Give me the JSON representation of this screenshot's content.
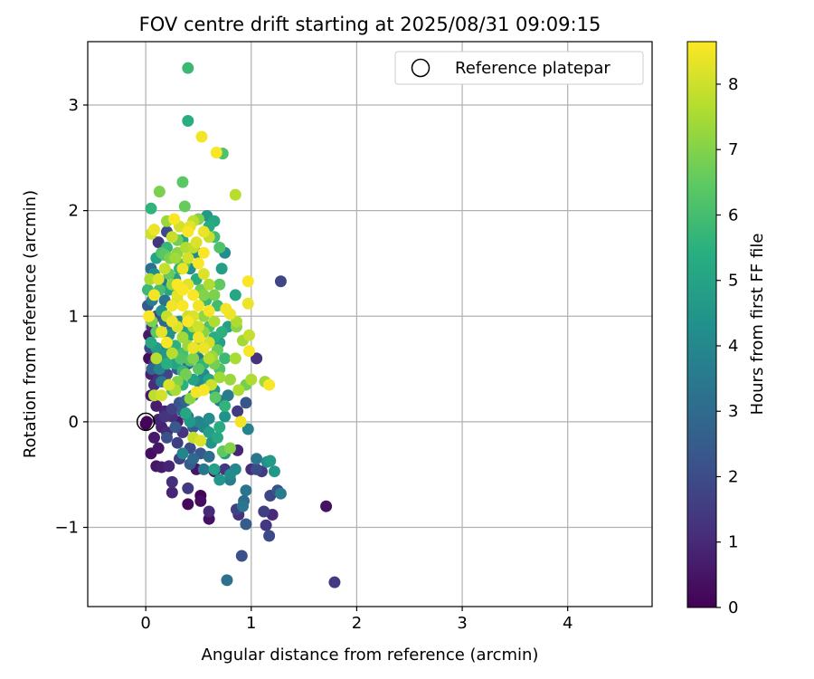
{
  "chart_data": {
    "type": "scatter",
    "title": "FOV centre drift starting at 2025/08/31 09:09:15",
    "xlabel": "Angular distance from reference (arcmin)",
    "ylabel": "Rotation from reference (arcmin)",
    "xlim": [
      -0.55,
      4.8
    ],
    "ylim": [
      -1.75,
      3.6
    ],
    "xticks": [
      0,
      1,
      2,
      3,
      4
    ],
    "xtick_labels": [
      "0",
      "1",
      "2",
      "3",
      "4"
    ],
    "yticks": [
      -1,
      0,
      1,
      2,
      3
    ],
    "ytick_labels": [
      "−1",
      "0",
      "1",
      "2",
      "3"
    ],
    "grid": true,
    "legend": {
      "position": "top-right",
      "entries": [
        "Reference platepar"
      ]
    },
    "reference_point": {
      "x": 0,
      "y": 0,
      "marker": "hollow-circle"
    },
    "colorbar": {
      "label": "Hours from first FF file",
      "colormap": "viridis",
      "range": [
        0,
        8.65
      ],
      "ticks": [
        0,
        1,
        2,
        3,
        4,
        5,
        6,
        7,
        8
      ],
      "tick_labels": [
        "0",
        "1",
        "2",
        "3",
        "4",
        "5",
        "6",
        "7",
        "8"
      ]
    },
    "points": [
      [
        0.01,
        0.0,
        0.1
      ],
      [
        0.0,
        -0.02,
        0.0
      ],
      [
        0.05,
        -0.3,
        0.3
      ],
      [
        0.08,
        -0.15,
        0.6
      ],
      [
        0.12,
        -0.25,
        0.5
      ],
      [
        0.15,
        -0.05,
        0.8
      ],
      [
        0.2,
        -0.1,
        1.0
      ],
      [
        0.1,
        -0.42,
        0.5
      ],
      [
        0.15,
        -0.43,
        0.7
      ],
      [
        0.22,
        -0.42,
        0.9
      ],
      [
        0.25,
        -0.57,
        1.1
      ],
      [
        0.25,
        -0.67,
        0.9
      ],
      [
        0.4,
        -0.63,
        1.5
      ],
      [
        0.4,
        -0.78,
        0.2
      ],
      [
        0.52,
        -0.7,
        0.1
      ],
      [
        0.52,
        -0.75,
        0.3
      ],
      [
        0.6,
        -0.92,
        0.4
      ],
      [
        0.6,
        -0.85,
        1.0
      ],
      [
        0.65,
        -0.47,
        0.6
      ],
      [
        0.75,
        -0.45,
        1.4
      ],
      [
        0.86,
        -0.83,
        1.7
      ],
      [
        0.88,
        -0.88,
        1.2
      ],
      [
        0.92,
        -0.8,
        3.4
      ],
      [
        0.93,
        -0.75,
        3.0
      ],
      [
        0.95,
        -0.65,
        3.3
      ],
      [
        0.95,
        -0.97,
        2.5
      ],
      [
        0.91,
        -1.27,
        2.1
      ],
      [
        0.77,
        -1.5,
        3.2
      ],
      [
        1.0,
        -0.45,
        1.1
      ],
      [
        1.05,
        -0.45,
        2.0
      ],
      [
        1.1,
        -0.47,
        1.5
      ],
      [
        1.12,
        -0.85,
        1.6
      ],
      [
        1.14,
        -0.98,
        1.4
      ],
      [
        1.17,
        -1.08,
        1.9
      ],
      [
        1.18,
        -0.7,
        1.8
      ],
      [
        1.2,
        -0.88,
        1.0
      ],
      [
        1.15,
        -0.38,
        4.3
      ],
      [
        1.18,
        -0.37,
        4.7
      ],
      [
        1.22,
        -0.47,
        4.6
      ],
      [
        1.25,
        -0.65,
        2.2
      ],
      [
        1.28,
        -0.68,
        3.6
      ],
      [
        1.28,
        1.33,
        1.8
      ],
      [
        1.71,
        -0.8,
        0.4
      ],
      [
        1.79,
        -1.52,
        1.5
      ],
      [
        1.05,
        0.6,
        1.2
      ],
      [
        0.95,
        0.18,
        2.3
      ],
      [
        0.97,
        -0.07,
        3.8
      ],
      [
        1.05,
        -0.35,
        3.4
      ],
      [
        0.85,
        -0.45,
        4.0
      ],
      [
        0.87,
        -0.27,
        0.9
      ],
      [
        0.8,
        -0.25,
        7.0
      ],
      [
        0.73,
        -0.28,
        6.5
      ],
      [
        0.8,
        -0.55,
        3.6
      ],
      [
        0.7,
        -0.55,
        4.5
      ],
      [
        0.65,
        -0.45,
        4.9
      ],
      [
        0.55,
        -0.45,
        3.4
      ],
      [
        0.45,
        -0.35,
        2.9
      ],
      [
        0.42,
        -0.4,
        2.5
      ],
      [
        0.35,
        -0.3,
        3.9
      ],
      [
        0.3,
        -0.2,
        1.6
      ],
      [
        0.2,
        -0.15,
        2.1
      ],
      [
        0.28,
        -0.05,
        2.4
      ],
      [
        0.45,
        -0.15,
        7.9
      ],
      [
        0.52,
        -0.18,
        8.2
      ],
      [
        0.6,
        -0.1,
        4.8
      ],
      [
        0.7,
        -0.05,
        5.3
      ],
      [
        0.75,
        0.05,
        4.4
      ],
      [
        0.75,
        0.15,
        5.6
      ],
      [
        0.66,
        0.23,
        6.4
      ],
      [
        0.78,
        0.25,
        3.6
      ],
      [
        0.88,
        0.3,
        7.6
      ],
      [
        0.9,
        0.0,
        8.5
      ],
      [
        0.87,
        0.1,
        1.5
      ],
      [
        0.6,
        0.03,
        4.2
      ],
      [
        0.5,
        0.0,
        3.8
      ],
      [
        0.4,
        0.05,
        3.1
      ],
      [
        0.35,
        0.1,
        2.6
      ],
      [
        0.25,
        0.05,
        1.2
      ],
      [
        0.18,
        0.1,
        0.9
      ],
      [
        0.1,
        0.15,
        0.7
      ],
      [
        0.05,
        0.25,
        0.6
      ],
      [
        0.08,
        0.35,
        1.1
      ],
      [
        0.12,
        0.4,
        1.3
      ],
      [
        0.2,
        0.45,
        1.8
      ],
      [
        0.3,
        0.5,
        2.5
      ],
      [
        0.4,
        0.55,
        3.0
      ],
      [
        0.5,
        0.6,
        3.6
      ],
      [
        0.55,
        0.45,
        4.1
      ],
      [
        0.45,
        0.4,
        5.0
      ],
      [
        0.35,
        0.35,
        5.5
      ],
      [
        0.25,
        0.3,
        6.0
      ],
      [
        0.15,
        0.25,
        8.1
      ],
      [
        0.08,
        0.25,
        7.8
      ],
      [
        0.15,
        0.6,
        4.2
      ],
      [
        0.1,
        0.7,
        4.7
      ],
      [
        0.05,
        0.75,
        5.2
      ],
      [
        0.03,
        0.82,
        0.6
      ],
      [
        0.06,
        0.9,
        1.0
      ],
      [
        0.1,
        1.0,
        2.0
      ],
      [
        0.06,
        1.15,
        3.7
      ],
      [
        0.08,
        1.4,
        4.2
      ],
      [
        0.05,
        1.45,
        3.1
      ],
      [
        0.1,
        1.55,
        5.0
      ],
      [
        0.12,
        1.7,
        1.4
      ],
      [
        0.2,
        1.8,
        2.0
      ],
      [
        0.15,
        1.6,
        6.2
      ],
      [
        0.22,
        1.4,
        6.6
      ],
      [
        0.25,
        1.3,
        7.2
      ],
      [
        0.3,
        1.2,
        8.3
      ],
      [
        0.35,
        1.1,
        8.6
      ],
      [
        0.4,
        1.0,
        8.0
      ],
      [
        0.45,
        0.9,
        7.5
      ],
      [
        0.5,
        0.8,
        8.5
      ],
      [
        0.55,
        0.7,
        8.4
      ],
      [
        0.6,
        0.6,
        7.7
      ],
      [
        0.65,
        0.55,
        6.8
      ],
      [
        0.7,
        0.5,
        6.2
      ],
      [
        0.75,
        0.6,
        5.8
      ],
      [
        0.3,
        0.9,
        8.2
      ],
      [
        0.35,
        0.8,
        7.4
      ],
      [
        0.2,
        0.75,
        8.6
      ],
      [
        0.15,
        0.85,
        8.3
      ],
      [
        0.2,
        1.0,
        7.9
      ],
      [
        0.25,
        1.1,
        8.5
      ],
      [
        0.3,
        1.3,
        8.6
      ],
      [
        0.35,
        1.45,
        8.4
      ],
      [
        0.4,
        1.55,
        8.1
      ],
      [
        0.45,
        1.65,
        7.8
      ],
      [
        0.5,
        1.5,
        8.6
      ],
      [
        0.55,
        1.4,
        8.2
      ],
      [
        0.6,
        1.3,
        7.6
      ],
      [
        0.65,
        1.2,
        6.9
      ],
      [
        0.5,
        1.1,
        8.5
      ],
      [
        0.45,
        1.2,
        8.6
      ],
      [
        0.4,
        1.3,
        8.3
      ],
      [
        0.35,
        1.25,
        8.6
      ],
      [
        0.3,
        1.15,
        8.0
      ],
      [
        0.25,
        0.95,
        8.4
      ],
      [
        0.4,
        0.95,
        8.6
      ],
      [
        0.45,
        1.0,
        8.2
      ],
      [
        0.55,
        1.0,
        7.2
      ],
      [
        0.6,
        0.9,
        6.1
      ],
      [
        0.65,
        0.8,
        5.4
      ],
      [
        0.7,
        0.75,
        4.9
      ],
      [
        0.55,
        0.3,
        8.6
      ],
      [
        0.62,
        0.35,
        8.0
      ],
      [
        0.7,
        0.42,
        7.4
      ],
      [
        0.48,
        0.28,
        8.5
      ],
      [
        0.42,
        0.22,
        7.1
      ],
      [
        0.38,
        0.45,
        6.8
      ],
      [
        0.28,
        0.3,
        7.5
      ],
      [
        0.22,
        0.35,
        8.2
      ],
      [
        0.3,
        0.38,
        7.0
      ],
      [
        0.33,
        0.6,
        6.2
      ],
      [
        0.2,
        0.55,
        5.4
      ],
      [
        0.25,
        0.65,
        7.7
      ],
      [
        0.45,
        0.7,
        8.4
      ],
      [
        0.5,
        0.9,
        8.0
      ],
      [
        0.55,
        1.2,
        7.0
      ],
      [
        0.6,
        1.05,
        8.6
      ],
      [
        0.65,
        0.95,
        7.6
      ],
      [
        0.68,
        1.1,
        5.9
      ],
      [
        0.7,
        1.3,
        6.5
      ],
      [
        0.72,
        1.45,
        4.8
      ],
      [
        0.75,
        1.6,
        4.2
      ],
      [
        0.7,
        1.65,
        6.2
      ],
      [
        0.65,
        1.75,
        5.9
      ],
      [
        0.6,
        1.85,
        5.3
      ],
      [
        0.58,
        1.95,
        4.6
      ],
      [
        0.65,
        1.9,
        5.1
      ],
      [
        0.67,
        2.55,
        8.6
      ],
      [
        0.73,
        2.54,
        6.2
      ],
      [
        0.53,
        2.7,
        8.5
      ],
      [
        0.4,
        2.85,
        5.4
      ],
      [
        0.4,
        3.35,
        5.8
      ],
      [
        0.35,
        2.27,
        6.4
      ],
      [
        0.37,
        2.04,
        6.6
      ],
      [
        0.13,
        2.18,
        6.9
      ],
      [
        0.05,
        2.02,
        5.6
      ],
      [
        0.05,
        1.78,
        8.0
      ],
      [
        0.08,
        1.82,
        8.4
      ],
      [
        0.2,
        1.9,
        7.3
      ],
      [
        0.27,
        1.92,
        8.6
      ],
      [
        0.32,
        1.85,
        8.1
      ],
      [
        0.4,
        1.8,
        8.6
      ],
      [
        0.45,
        1.9,
        7.8
      ],
      [
        0.5,
        1.92,
        7.0
      ],
      [
        0.55,
        1.8,
        8.4
      ],
      [
        0.6,
        1.75,
        7.9
      ],
      [
        0.55,
        1.6,
        8.6
      ],
      [
        0.48,
        1.7,
        8.2
      ],
      [
        0.38,
        1.65,
        7.6
      ],
      [
        0.3,
        1.6,
        7.1
      ],
      [
        0.23,
        1.55,
        6.9
      ],
      [
        0.18,
        1.45,
        7.9
      ],
      [
        0.12,
        1.35,
        8.2
      ],
      [
        0.08,
        1.2,
        8.5
      ],
      [
        0.03,
        1.0,
        8.6
      ],
      [
        0.06,
        0.95,
        6.9
      ],
      [
        0.1,
        0.85,
        6.4
      ],
      [
        0.1,
        0.6,
        7.7
      ],
      [
        0.06,
        0.5,
        2.8
      ],
      [
        0.05,
        0.45,
        0.8
      ],
      [
        0.08,
        0.55,
        1.5
      ],
      [
        0.12,
        0.65,
        3.2
      ],
      [
        0.18,
        0.7,
        3.8
      ],
      [
        0.22,
        0.82,
        4.4
      ],
      [
        0.28,
        0.72,
        5.5
      ],
      [
        0.35,
        0.65,
        6.0
      ],
      [
        0.4,
        0.72,
        7.3
      ],
      [
        0.45,
        0.6,
        7.0
      ],
      [
        0.5,
        0.5,
        6.4
      ],
      [
        0.55,
        0.55,
        5.6
      ],
      [
        0.6,
        0.4,
        5.1
      ],
      [
        0.65,
        0.3,
        4.5
      ],
      [
        0.7,
        0.2,
        3.5
      ],
      [
        0.8,
        0.4,
        7.3
      ],
      [
        0.85,
        0.6,
        7.5
      ],
      [
        0.86,
        0.9,
        7.1
      ],
      [
        0.86,
        0.95,
        7.6
      ],
      [
        0.85,
        1.2,
        5.1
      ],
      [
        0.85,
        2.15,
        7.7
      ],
      [
        0.97,
        1.33,
        8.6
      ],
      [
        0.97,
        1.12,
        8.4
      ],
      [
        0.98,
        0.82,
        7.9
      ],
      [
        0.92,
        0.77,
        7.4
      ],
      [
        0.98,
        0.67,
        8.6
      ],
      [
        1.0,
        0.4,
        7.6
      ],
      [
        1.13,
        0.38,
        7.4
      ],
      [
        1.17,
        0.35,
        8.6
      ],
      [
        0.95,
        0.35,
        6.8
      ],
      [
        0.5,
        0.38,
        4.2
      ],
      [
        0.45,
        0.25,
        3.5
      ],
      [
        0.38,
        0.2,
        2.8
      ],
      [
        0.32,
        0.18,
        2.2
      ],
      [
        0.25,
        0.12,
        1.7
      ],
      [
        0.18,
        0.05,
        1.3
      ],
      [
        0.12,
        0.02,
        0.9
      ],
      [
        0.3,
        0.0,
        0.7
      ],
      [
        0.35,
        -0.1,
        1.3
      ],
      [
        0.45,
        -0.05,
        2.6
      ],
      [
        0.55,
        -0.05,
        3.9
      ],
      [
        0.62,
        -0.2,
        4.4
      ],
      [
        0.68,
        -0.15,
        5.2
      ],
      [
        0.75,
        -0.3,
        4.7
      ],
      [
        0.8,
        -0.5,
        4.1
      ],
      [
        0.6,
        -0.33,
        3.0
      ],
      [
        0.52,
        -0.3,
        2.4
      ],
      [
        0.42,
        -0.25,
        2.0
      ],
      [
        0.32,
        -0.35,
        1.7
      ],
      [
        0.48,
        -0.45,
        0.5
      ],
      [
        0.42,
        0.0,
        4.6
      ],
      [
        0.38,
        0.08,
        5.1
      ],
      [
        0.15,
        0.38,
        3.4
      ],
      [
        0.13,
        0.5,
        3.9
      ],
      [
        0.2,
        0.65,
        4.6
      ],
      [
        0.28,
        0.55,
        5.0
      ],
      [
        0.35,
        0.48,
        5.7
      ],
      [
        0.42,
        0.58,
        6.3
      ],
      [
        0.5,
        0.72,
        6.6
      ],
      [
        0.55,
        0.85,
        7.1
      ],
      [
        0.6,
        0.75,
        8.1
      ],
      [
        0.63,
        0.62,
        7.3
      ],
      [
        0.68,
        0.68,
        6.6
      ],
      [
        0.72,
        0.85,
        5.5
      ],
      [
        0.78,
        0.9,
        4.9
      ],
      [
        0.8,
        1.02,
        8.4
      ],
      [
        0.76,
        1.07,
        8.5
      ],
      [
        0.03,
        0.6,
        0.3
      ],
      [
        0.04,
        0.7,
        1.9
      ],
      [
        0.02,
        1.1,
        2.5
      ],
      [
        0.02,
        1.25,
        5.8
      ],
      [
        0.04,
        1.35,
        7.5
      ],
      [
        0.15,
        1.05,
        4.5
      ],
      [
        0.18,
        1.15,
        3.3
      ],
      [
        0.22,
        1.25,
        5.1
      ],
      [
        0.28,
        1.35,
        4.8
      ],
      [
        0.32,
        1.45,
        5.6
      ],
      [
        0.37,
        1.5,
        6.2
      ],
      [
        0.42,
        1.45,
        4.3
      ],
      [
        0.48,
        1.35,
        5.3
      ],
      [
        0.52,
        1.25,
        6.7
      ],
      [
        0.57,
        1.15,
        5.8
      ],
      [
        0.28,
        1.55,
        7.4
      ],
      [
        0.3,
        1.72,
        6.7
      ],
      [
        0.25,
        1.75,
        7.9
      ],
      [
        0.35,
        1.72,
        5.1
      ],
      [
        0.2,
        1.65,
        5.7
      ],
      [
        0.18,
        1.58,
        6.4
      ],
      [
        0.42,
        1.85,
        8.3
      ],
      [
        0.48,
        1.6,
        4.1
      ],
      [
        0.13,
        1.25,
        6.0
      ],
      [
        0.15,
        1.33,
        3.5
      ],
      [
        0.18,
        0.95,
        2.9
      ],
      [
        0.25,
        0.88,
        3.5
      ],
      [
        0.32,
        0.95,
        4.1
      ],
      [
        0.38,
        0.88,
        4.8
      ],
      [
        0.42,
        0.82,
        5.3
      ],
      [
        0.48,
        0.7,
        5.7
      ]
    ]
  }
}
